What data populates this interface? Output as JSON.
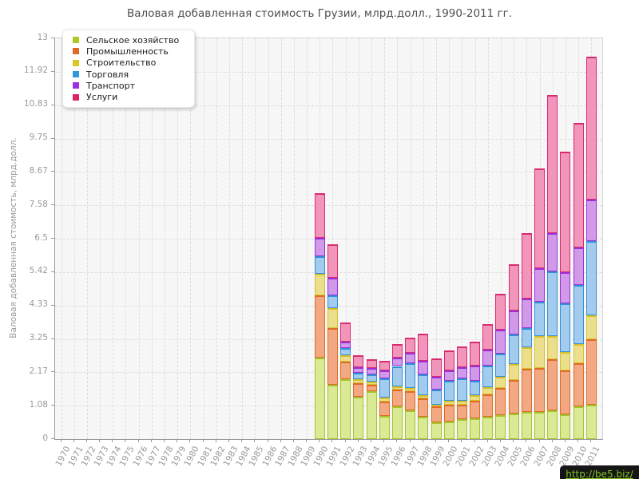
{
  "title": "Валовая добавленная стоимость Грузии, млрд.долл., 1990-2011 гг.",
  "y_axis": {
    "label": "Валовая добавленная стоимость, млрд.долл.",
    "tick_labels": [
      "0",
      "1.08",
      "2.17",
      "3.25",
      "4.33",
      "5.42",
      "6.5",
      "7.58",
      "8.67",
      "9.75",
      "10.83",
      "11.92",
      "13"
    ],
    "tick_values": [
      0,
      1.08,
      2.17,
      3.25,
      4.33,
      5.42,
      6.5,
      7.58,
      8.67,
      9.75,
      10.83,
      11.92,
      13
    ]
  },
  "x_axis": {
    "years": [
      "1970",
      "1971",
      "1972",
      "1973",
      "1974",
      "1975",
      "1976",
      "1977",
      "1978",
      "1979",
      "1980",
      "1981",
      "1982",
      "1983",
      "1984",
      "1985",
      "1986",
      "1987",
      "1988",
      "1989",
      "1990",
      "1991",
      "1992",
      "1993",
      "1994",
      "1995",
      "1996",
      "1997",
      "1998",
      "1999",
      "2000",
      "2001",
      "2002",
      "2003",
      "2004",
      "2005",
      "2006",
      "2007",
      "2008",
      "2009",
      "2010",
      "2011"
    ]
  },
  "legend": {
    "items": [
      {
        "label": "Сельское хозяйство",
        "color": "#a8cc22"
      },
      {
        "label": "Промышленность",
        "color": "#e06829"
      },
      {
        "label": "Строительство",
        "color": "#d9c822"
      },
      {
        "label": "Торговля",
        "color": "#3397dd"
      },
      {
        "label": "Транспорт",
        "color": "#9c2fe0"
      },
      {
        "label": "Услуги",
        "color": "#dc2368"
      }
    ]
  },
  "watermark": {
    "text": "http://be5.biz/"
  },
  "chart_data": {
    "type": "bar",
    "subtype": "stacked",
    "title": "Валовая добавленная стоимость Грузии, млрд.долл., 1990-2011 гг.",
    "xlabel": "",
    "ylabel": "Валовая добавленная стоимость, млрд.долл.",
    "ylim": [
      0,
      13
    ],
    "grid": true,
    "legend_position": "top-left",
    "categories": [
      1990,
      1991,
      1992,
      1993,
      1994,
      1995,
      1996,
      1997,
      1998,
      1999,
      2000,
      2001,
      2002,
      2003,
      2004,
      2005,
      2006,
      2007,
      2008,
      2009,
      2010,
      2011
    ],
    "series": [
      {
        "name": "Сельское хозяйство",
        "fill": "#d9e994",
        "border": "#a4c52a",
        "values": [
          2.65,
          1.75,
          1.95,
          1.38,
          1.55,
          0.74,
          1.05,
          0.92,
          0.73,
          0.54,
          0.57,
          0.64,
          0.68,
          0.73,
          0.77,
          0.83,
          0.88,
          0.88,
          0.92,
          0.8,
          1.06,
          1.12
        ]
      },
      {
        "name": "Промышленность",
        "fill": "#f2a983",
        "border": "#df6b24",
        "values": [
          2.0,
          1.84,
          0.55,
          0.43,
          0.2,
          0.49,
          0.55,
          0.63,
          0.59,
          0.52,
          0.55,
          0.48,
          0.57,
          0.71,
          0.89,
          1.09,
          1.39,
          1.43,
          1.67,
          1.42,
          1.4,
          2.12
        ]
      },
      {
        "name": "Строительство",
        "fill": "#ebdf8e",
        "border": "#d5c02b",
        "values": [
          0.71,
          0.65,
          0.23,
          0.14,
          0.11,
          0.11,
          0.1,
          0.11,
          0.1,
          0.06,
          0.13,
          0.13,
          0.17,
          0.24,
          0.37,
          0.52,
          0.71,
          1.02,
          0.76,
          0.61,
          0.63,
          0.78
        ]
      },
      {
        "name": "Торговля",
        "fill": "#a3cbee",
        "border": "#3090d8",
        "values": [
          0.58,
          0.41,
          0.23,
          0.19,
          0.24,
          0.64,
          0.67,
          0.8,
          0.69,
          0.49,
          0.65,
          0.71,
          0.48,
          0.71,
          0.75,
          0.96,
          0.63,
          1.12,
          2.08,
          1.58,
          1.9,
          2.41
        ]
      },
      {
        "name": "Транспорт",
        "fill": "#d19ae9",
        "border": "#9d2fd6",
        "values": [
          0.58,
          0.57,
          0.21,
          0.18,
          0.2,
          0.26,
          0.28,
          0.33,
          0.42,
          0.42,
          0.32,
          0.37,
          0.49,
          0.52,
          0.76,
          0.77,
          0.95,
          1.09,
          1.24,
          1.0,
          1.22,
          1.34
        ]
      },
      {
        "name": "Услуги",
        "fill": "#f295bb",
        "border": "#d92a72",
        "values": [
          1.45,
          1.1,
          0.6,
          0.4,
          0.29,
          0.31,
          0.44,
          0.49,
          0.9,
          0.59,
          0.66,
          0.67,
          0.76,
          0.83,
          1.17,
          1.51,
          2.11,
          3.23,
          4.49,
          3.92,
          4.04,
          4.64
        ]
      }
    ]
  }
}
